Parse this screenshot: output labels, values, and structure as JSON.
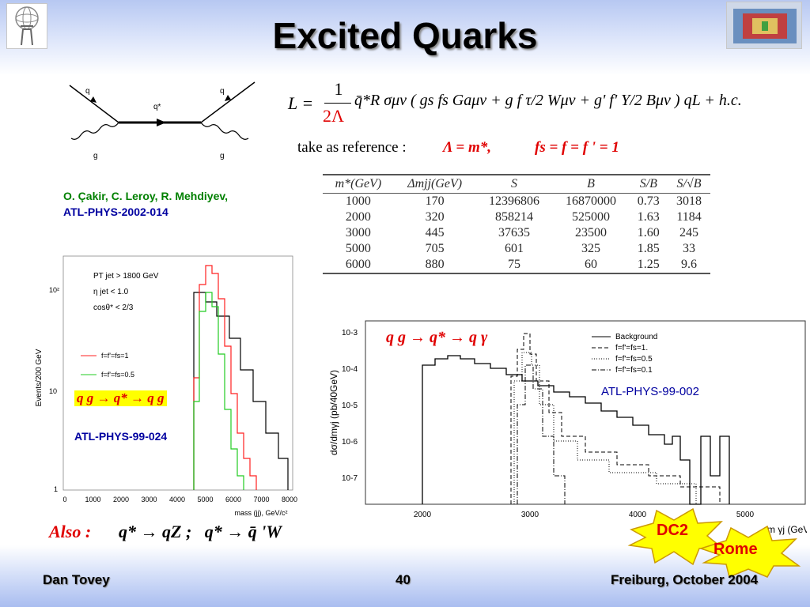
{
  "slide": {
    "title": "Excited Quarks",
    "footer": {
      "author": "Dan Tovey",
      "page": "40",
      "venue": "Freiburg, October 2004"
    }
  },
  "diagram": {
    "labels": {
      "q_in": "q",
      "q_out": "q",
      "qstar": "q*",
      "g_in": "g",
      "g_out": "g"
    }
  },
  "lagrangian": {
    "lhs": "L =",
    "frac_num": "1",
    "frac_den": "2Λ",
    "rest": "q̄*R σμν ( gs fs Gaμν + g f τ/2 Wμν + g' f' Y/2 Bμν ) qL + h.c.",
    "reference_prefix": "take as reference :",
    "reference_value": "Λ = m*,",
    "reference_couplings": "fs = f = f ' = 1"
  },
  "reference_main": {
    "authors": "O. Çakir, C. Leroy, R. Mehdiyev,",
    "report": "ATL-PHYS-2002-014"
  },
  "cuts_table": {
    "headers": [
      "m*(GeV)",
      "Δmjj(GeV)",
      "S",
      "B",
      "S/B",
      "S/√B"
    ],
    "rows": [
      [
        "1000",
        "170",
        "12396806",
        "16870000",
        "0.73",
        "3018"
      ],
      [
        "2000",
        "320",
        "858214",
        "525000",
        "1.63",
        "1184"
      ],
      [
        "3000",
        "445",
        "37635",
        "23500",
        "1.60",
        "245"
      ],
      [
        "5000",
        "705",
        "601",
        "325",
        "1.85",
        "33"
      ],
      [
        "6000",
        "880",
        "75",
        "60",
        "1.25",
        "9.6"
      ]
    ]
  },
  "left_plot": {
    "ylabel": "Events/200 GeV",
    "xlabel": "mass (jj), GeV/c²",
    "cuts": [
      "PT jet > 1800 GeV",
      "η jet < 1.0",
      "cosθ* < 2/3"
    ],
    "legend": [
      "f=f'=fs=1",
      "f=f'=fs=0.5"
    ],
    "process": "q g → q* → q g",
    "report": "ATL-PHYS-99-024",
    "x_ticks": [
      "0",
      "1000",
      "2000",
      "3000",
      "4000",
      "5000",
      "6000",
      "7000",
      "8000"
    ],
    "y_ticks": [
      "1",
      "10",
      "10²"
    ],
    "colors": {
      "background": "#000000",
      "f1": "#ff2020",
      "f05": "#22cc22"
    }
  },
  "right_plot": {
    "ylabel": "dσ/dmγj (pb/40GeV)",
    "xlabel": "m γj (GeV)",
    "process": "q g → q* → q γ",
    "report": "ATL-PHYS-99-002",
    "legend": [
      "Background",
      "f=f'=fs=1.",
      "f=f'=fs=0.5",
      "f=f'=fs=0.1"
    ],
    "x_ticks": [
      "2000",
      "3000",
      "4000",
      "5000"
    ],
    "y_ticks": [
      "10-3",
      "10-4",
      "10-5",
      "10-6",
      "10-7"
    ]
  },
  "also": {
    "label": "Also :",
    "text": "q* → qZ ;   q* → q̄ 'W"
  },
  "stars": {
    "dc2": "DC2",
    "rome": "Rome"
  },
  "colors": {
    "accent_red": "#e00000",
    "ref_green": "#008000",
    "ref_blue": "#0000a0"
  }
}
